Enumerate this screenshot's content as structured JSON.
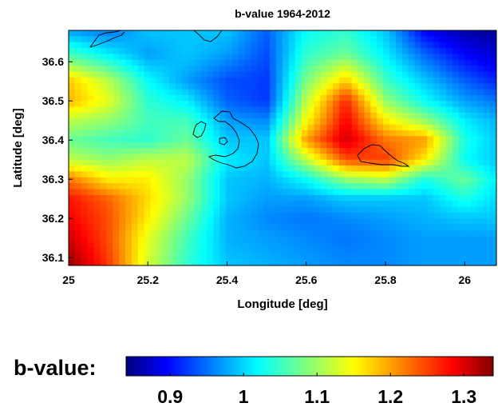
{
  "chart_data": {
    "type": "heatmap",
    "title": "b-value 1964-2012",
    "xlabel": "Longitude [deg]",
    "ylabel": "Latitude [deg]",
    "xlim": [
      25.0,
      26.08
    ],
    "ylim": [
      36.08,
      36.68
    ],
    "x_ticks": [
      25,
      25.2,
      25.4,
      25.6,
      25.8,
      26
    ],
    "x_tick_labels": [
      "25",
      "25.2",
      "25.4",
      "25.6",
      "25.8",
      "26"
    ],
    "y_ticks": [
      36.1,
      36.2,
      36.3,
      36.4,
      36.5,
      36.6
    ],
    "y_tick_labels": [
      "36.1",
      "36.2",
      "36.3",
      "36.4",
      "36.5",
      "36.6"
    ],
    "colormap": "jet",
    "colorbar": {
      "label": "b-value:",
      "range": [
        0.84,
        1.34
      ],
      "ticks": [
        0.9,
        1.0,
        1.1,
        1.2,
        1.3
      ],
      "tick_labels": [
        "0.9",
        "1",
        "1.1",
        "1.2",
        "1.3"
      ]
    },
    "x": [
      25.0,
      25.1,
      25.2,
      25.3,
      25.4,
      25.5,
      25.6,
      25.7,
      25.8,
      25.9,
      26.0,
      26.08
    ],
    "y": [
      36.68,
      36.62,
      36.55,
      36.5,
      36.45,
      36.4,
      36.35,
      36.3,
      36.25,
      36.2,
      36.15,
      36.08
    ],
    "z": [
      [
        0.98,
        0.96,
        1.0,
        1.0,
        1.0,
        0.95,
        1.03,
        1.05,
        1.0,
        0.9,
        0.86,
        0.85
      ],
      [
        1.06,
        1.02,
        0.98,
        1.0,
        0.98,
        0.94,
        1.05,
        1.08,
        1.02,
        0.95,
        0.9,
        0.88
      ],
      [
        1.18,
        1.12,
        1.03,
        0.98,
        0.94,
        0.93,
        1.09,
        1.18,
        1.06,
        1.0,
        0.95,
        0.92
      ],
      [
        1.19,
        1.14,
        1.05,
        1.02,
        0.95,
        0.93,
        1.12,
        1.26,
        1.1,
        1.03,
        0.98,
        0.96
      ],
      [
        1.12,
        1.1,
        1.06,
        1.06,
        0.98,
        0.97,
        1.15,
        1.28,
        1.16,
        1.1,
        1.02,
        0.99
      ],
      [
        1.08,
        1.06,
        1.05,
        1.08,
        1.0,
        1.0,
        1.2,
        1.3,
        1.22,
        1.2,
        1.04,
        1.0
      ],
      [
        1.12,
        1.1,
        1.12,
        1.12,
        1.02,
        1.0,
        1.12,
        1.24,
        1.25,
        1.16,
        1.03,
        1.0
      ],
      [
        1.22,
        1.16,
        1.16,
        1.1,
        1.0,
        0.99,
        1.03,
        1.1,
        1.12,
        1.04,
        1.08,
        1.02
      ],
      [
        1.27,
        1.23,
        1.17,
        1.1,
        1.0,
        0.98,
        0.98,
        1.0,
        1.0,
        1.0,
        1.04,
        1.01
      ],
      [
        1.28,
        1.24,
        1.16,
        1.08,
        0.99,
        0.97,
        0.96,
        0.97,
        0.98,
        0.99,
        1.0,
        1.0
      ],
      [
        1.3,
        1.24,
        1.14,
        1.06,
        0.99,
        0.98,
        0.97,
        0.96,
        0.97,
        0.98,
        0.98,
        0.98
      ],
      [
        1.33,
        1.25,
        1.13,
        1.05,
        1.0,
        0.99,
        0.98,
        0.97,
        0.97,
        0.98,
        0.98,
        0.98
      ]
    ]
  }
}
